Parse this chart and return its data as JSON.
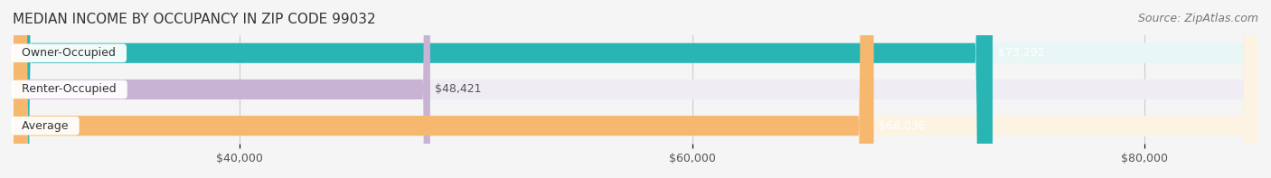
{
  "title": "MEDIAN INCOME BY OCCUPANCY IN ZIP CODE 99032",
  "source": "Source: ZipAtlas.com",
  "categories": [
    "Owner-Occupied",
    "Renter-Occupied",
    "Average"
  ],
  "values": [
    73292,
    48421,
    68036
  ],
  "labels": [
    "$73,292",
    "$48,421",
    "$68,036"
  ],
  "bar_colors": [
    "#2ab5b5",
    "#c9b3d4",
    "#f5b86e"
  ],
  "bar_background_colors": [
    "#e8f6f6",
    "#f0ecf4",
    "#fdf3e3"
  ],
  "label_colors": [
    "#ffffff",
    "#555555",
    "#ffffff"
  ],
  "xlim_min": 30000,
  "xlim_max": 85000,
  "xticks": [
    40000,
    60000,
    80000
  ],
  "xtick_labels": [
    "$40,000",
    "$60,000",
    "$80,000"
  ],
  "bar_height": 0.55,
  "bar_gap": 0.15,
  "title_fontsize": 11,
  "source_fontsize": 9,
  "label_fontsize": 9,
  "tick_fontsize": 9,
  "category_fontsize": 9,
  "background_color": "#f5f5f5"
}
